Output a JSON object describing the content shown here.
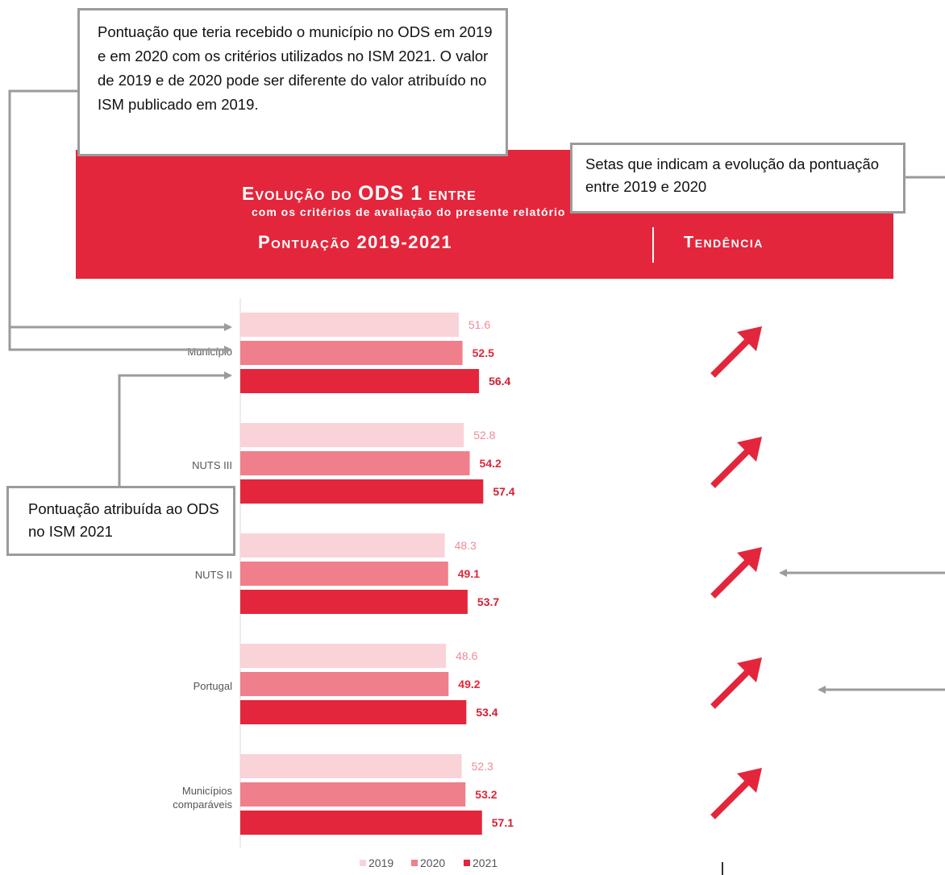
{
  "callouts": {
    "top": "Pontuação que teria recebido o município no ODS em 2019 e em 2020 com os critérios utilizados no ISM 2021. O valor de 2019 e de 2020 pode ser diferente do valor atribuído no ISM publicado em 2019.",
    "right": "Setas que indicam a evolução da pontuação entre 2019 e 2020",
    "left": "Pontuação atribuída ao ODS no ISM 2021"
  },
  "header": {
    "title_part1": "Evolução do ",
    "title_part2": "ODS 1",
    "title_part3": " entre",
    "subtitle": "com os critérios de avaliação do presente relatório",
    "score_label": "Pontuação 2019-2021",
    "trend_label": "Tendência"
  },
  "colors": {
    "accent": "#e3263b",
    "s2019": "#f9d3d8",
    "s2020": "#ef7f8b",
    "s2021": "#e3263b",
    "label2019": "#f08a97",
    "label2020": "#e3263b",
    "label2021": "#d11f33",
    "callout_border": "#9b9b9b"
  },
  "trend_icons": [
    "arrow-up-right-icon",
    "arrow-up-right-icon",
    "arrow-up-right-icon",
    "arrow-up-right-icon",
    "arrow-up-right-icon"
  ],
  "chart_data": {
    "type": "bar",
    "orientation": "horizontal",
    "categories": [
      "Município",
      "NUTS III",
      "NUTS II",
      "Portugal",
      "Municípios comparáveis"
    ],
    "series": [
      {
        "name": "2019",
        "values": [
          51.6,
          52.8,
          48.3,
          48.6,
          52.3
        ]
      },
      {
        "name": "2020",
        "values": [
          52.5,
          54.2,
          49.1,
          49.2,
          53.2
        ]
      },
      {
        "name": "2021",
        "values": [
          56.4,
          57.4,
          53.7,
          53.4,
          57.1
        ]
      }
    ],
    "xlim": [
      0,
      100
    ],
    "grid": false,
    "legend": "bottom"
  }
}
